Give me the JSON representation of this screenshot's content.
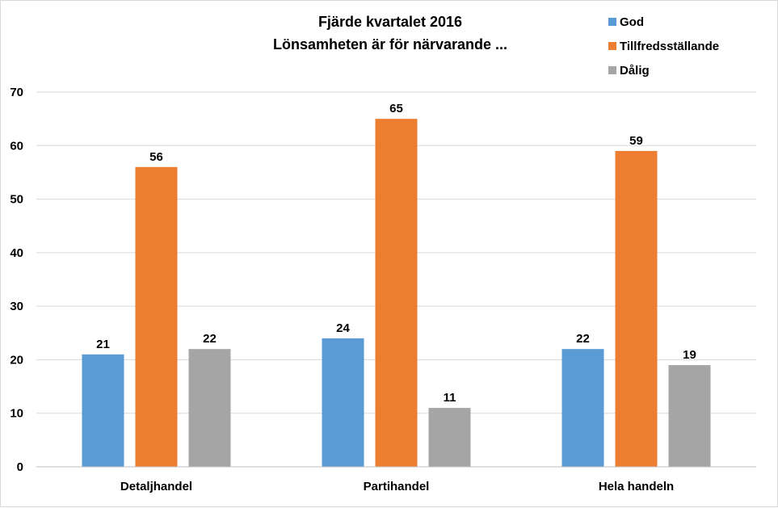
{
  "chart_data": {
    "type": "bar",
    "title": "Fjärde kvartalet 2016",
    "subtitle": "Lönsamheten är för närvarande ...",
    "categories": [
      "Detaljhandel",
      "Partihandel",
      "Hela handeln"
    ],
    "series": [
      {
        "name": "God",
        "values": [
          21,
          24,
          22
        ],
        "color": "#5B9BD5"
      },
      {
        "name": "Tillfredsställande",
        "values": [
          56,
          65,
          59
        ],
        "color": "#ED7D31"
      },
      {
        "name": "Dålig",
        "values": [
          22,
          11,
          19
        ],
        "color": "#A5A5A5"
      }
    ],
    "ylim": [
      0,
      70
    ],
    "yticks": [
      0,
      10,
      20,
      30,
      40,
      50,
      60,
      70
    ],
    "grid": true,
    "legend_position": "top-right",
    "data_labels": true
  }
}
